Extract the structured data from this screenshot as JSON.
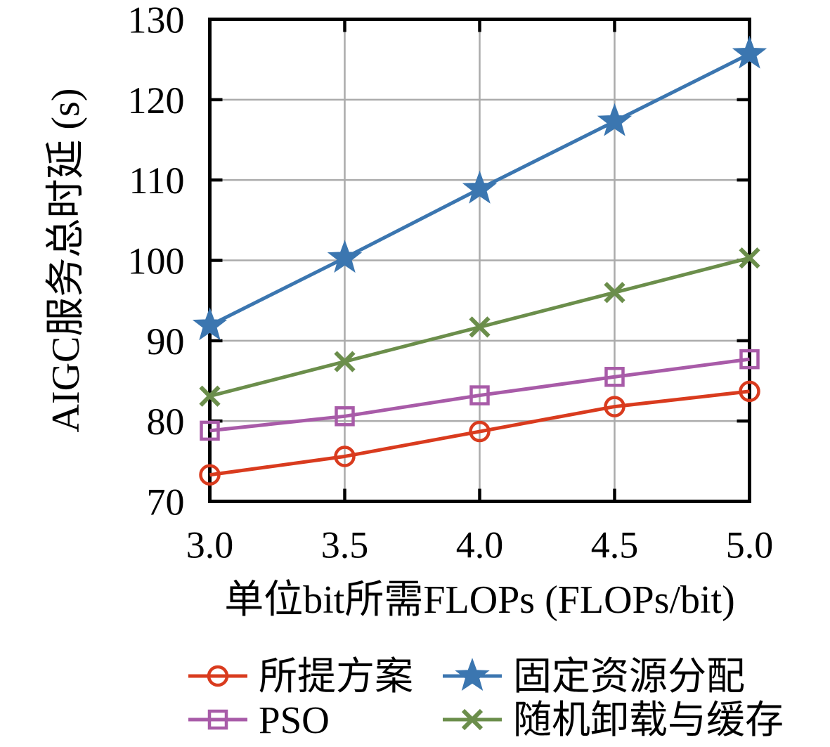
{
  "figure": {
    "background": "#ffffff",
    "text_color": "#000000"
  },
  "chart_data": {
    "type": "line",
    "title": "",
    "xlabel": "单位bit所需FLOPs (FLOPs/bit)",
    "ylabel": "AIGC服务总时延 (s)",
    "x": [
      3.0,
      3.5,
      4.0,
      4.5,
      5.0
    ],
    "xlim": [
      3.0,
      5.0
    ],
    "ylim": [
      70,
      130
    ],
    "x_tick_labels": [
      "3.0",
      "3.5",
      "4.0",
      "4.5",
      "5.0"
    ],
    "y_ticks": [
      70,
      80,
      90,
      100,
      110,
      120,
      130
    ],
    "y_tick_labels": [
      "70",
      "80",
      "90",
      "100",
      "110",
      "120",
      "130"
    ],
    "grid": true,
    "grid_color": "#ABABAB",
    "axis_color": "#000000",
    "legend_position": "below-chart, two columns",
    "series": [
      {
        "name": "所提方案",
        "id": "proposed",
        "color": "#D93B1E",
        "marker": "circle",
        "values": [
          73.3,
          75.6,
          78.7,
          81.8,
          83.7
        ]
      },
      {
        "name": "PSO",
        "id": "pso",
        "color": "#A85BA8",
        "marker": "square",
        "values": [
          78.8,
          80.6,
          83.2,
          85.5,
          87.7
        ]
      },
      {
        "name": "固定资源分配",
        "id": "fixed-resource-allocation",
        "color": "#3B76B0",
        "marker": "star",
        "values": [
          91.9,
          100.3,
          108.9,
          117.3,
          125.7
        ]
      },
      {
        "name": "随机卸载与缓存",
        "id": "random-offloading-caching",
        "color": "#6B8E4B",
        "marker": "x",
        "values": [
          83.1,
          87.4,
          91.7,
          96.0,
          100.3
        ]
      }
    ],
    "legend_columns": [
      [
        0,
        1
      ],
      [
        2,
        3
      ]
    ]
  }
}
